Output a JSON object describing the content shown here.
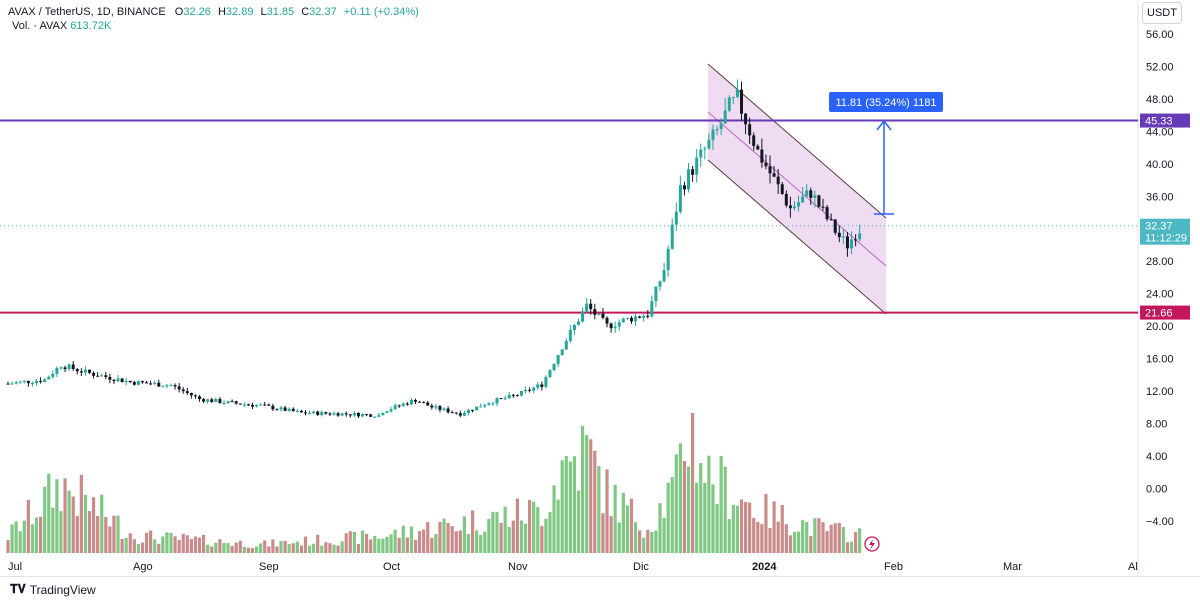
{
  "header": {
    "symbol": "AVAX / TetherUS, 1D, BINANCE",
    "o_label": "O",
    "o_val": "32.26",
    "h_label": "H",
    "h_val": "32.89",
    "l_label": "L",
    "l_val": "31.85",
    "c_label": "C",
    "c_val": "32.37",
    "change": "+0.11 (+0.34%)",
    "vol_label": "Vol. · AVAX",
    "vol_val": "613.72K"
  },
  "currency_button": "USDT",
  "brand": "TradingView",
  "colors": {
    "up": "#26a69a",
    "down": "#131722",
    "vol_up": "#81c784",
    "vol_down": "#c98a8a",
    "resistance": "#673ab7",
    "support": "#c2185b",
    "channel_fill": "#e1bee7",
    "measure": "#2962ff",
    "price_tag": "#4bb8c4"
  },
  "chart_data": {
    "type": "candlestick",
    "y_ticks": [
      "56.00",
      "52.00",
      "48.00",
      "44.00",
      "40.00",
      "36.00",
      "32.00",
      "28.00",
      "24.00",
      "20.00",
      "16.00",
      "12.00",
      "8.00",
      "4.00",
      "0.00",
      "−4.00"
    ],
    "x_ticks": [
      "Jul",
      "Ago",
      "Sep",
      "Oct",
      "Nov",
      "Dic",
      "2024",
      "Feb",
      "Mar",
      "Al"
    ],
    "resistance_level": "45.33",
    "support_level": "21.66",
    "current_price": "32.37",
    "countdown": "11:12:29",
    "measure_label": "11.81 (35.24%) 1181",
    "price_path": [
      [
        "2023-07-01",
        12.9
      ],
      [
        "2023-07-10",
        13.4
      ],
      [
        "2023-07-14",
        15.2
      ],
      [
        "2023-07-20",
        14.3
      ],
      [
        "2023-07-31",
        13.1
      ],
      [
        "2023-08-10",
        12.7
      ],
      [
        "2023-08-17",
        11.0
      ],
      [
        "2023-08-25",
        10.5
      ],
      [
        "2023-09-01",
        10.2
      ],
      [
        "2023-09-11",
        9.3
      ],
      [
        "2023-09-20",
        9.2
      ],
      [
        "2023-09-30",
        9.0
      ],
      [
        "2023-10-01",
        9.5
      ],
      [
        "2023-10-09",
        10.9
      ],
      [
        "2023-10-13",
        10.0
      ],
      [
        "2023-10-20",
        9.2
      ],
      [
        "2023-10-27",
        10.6
      ],
      [
        "2023-11-03",
        11.5
      ],
      [
        "2023-11-09",
        12.8
      ],
      [
        "2023-11-14",
        17.5
      ],
      [
        "2023-11-20",
        22.5
      ],
      [
        "2023-11-25",
        20.0
      ],
      [
        "2023-12-01",
        21.0
      ],
      [
        "2023-12-05",
        21.5
      ],
      [
        "2023-12-09",
        27.0
      ],
      [
        "2023-12-13",
        37.0
      ],
      [
        "2023-12-18",
        41.0
      ],
      [
        "2023-12-22",
        44.0
      ],
      [
        "2023-12-25",
        47.0
      ],
      [
        "2023-12-27",
        48.0
      ],
      [
        "2024-01-01",
        41.5
      ],
      [
        "2024-01-05",
        38.0
      ],
      [
        "2024-01-09",
        34.5
      ],
      [
        "2024-01-14",
        36.5
      ],
      [
        "2024-01-17",
        34.0
      ],
      [
        "2024-01-21",
        31.0
      ],
      [
        "2024-01-23",
        30.0
      ],
      [
        "2024-01-25",
        31.5
      ],
      [
        "2024-01-27",
        32.37
      ]
    ],
    "volume_profile": [
      [
        "2023-07-01",
        2
      ],
      [
        "2023-07-14",
        8
      ],
      [
        "2023-08-01",
        2
      ],
      [
        "2023-09-01",
        1
      ],
      [
        "2023-10-01",
        2
      ],
      [
        "2023-10-27",
        4
      ],
      [
        "2023-11-09",
        5
      ],
      [
        "2023-11-14",
        10
      ],
      [
        "2023-11-20",
        12
      ],
      [
        "2023-11-25",
        7
      ],
      [
        "2023-12-05",
        3
      ],
      [
        "2023-12-12",
        8
      ],
      [
        "2023-12-15",
        15
      ],
      [
        "2023-12-20",
        9
      ],
      [
        "2024-01-01",
        5
      ],
      [
        "2024-01-15",
        3
      ],
      [
        "2024-01-27",
        2
      ]
    ]
  }
}
